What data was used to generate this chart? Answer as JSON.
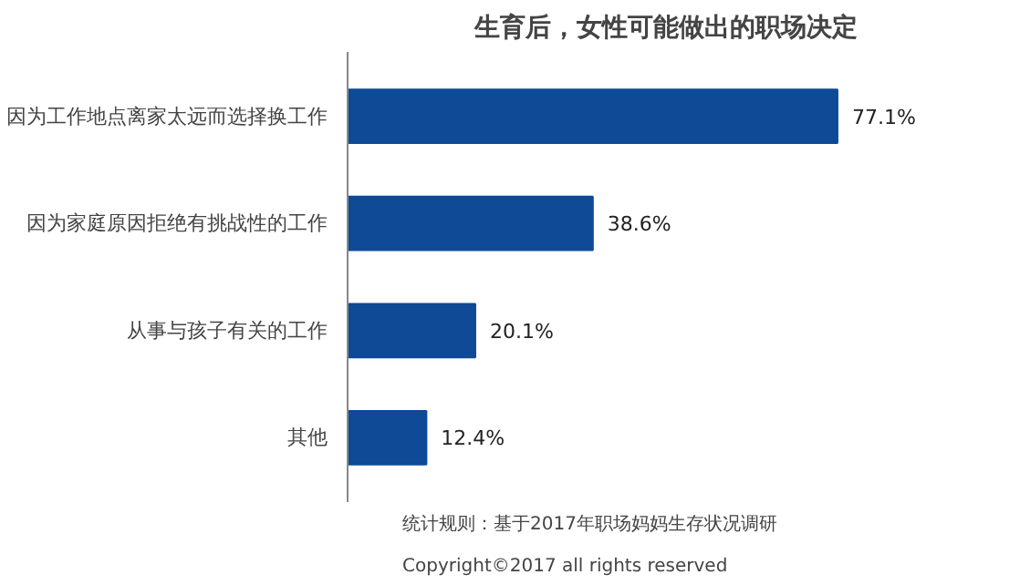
{
  "chart_data": {
    "type": "bar",
    "orientation": "horizontal",
    "title": "生育后，女性可能做出的职场决定",
    "categories": [
      "因为工作地点离家太远而选择换工作",
      "因为家庭原因拒绝有挑战性的工作",
      "从事与孩子有关的工作",
      "其他"
    ],
    "values": [
      77.1,
      38.6,
      20.1,
      12.4
    ],
    "value_labels": [
      "77.1%",
      "38.6%",
      "20.1%",
      "12.4%"
    ],
    "color": "#0e4a96",
    "grid": false,
    "annotations": [
      "统计规则：基于2017年职场妈妈生存状况调研",
      "Copyright©2017 all rights reserved"
    ]
  }
}
